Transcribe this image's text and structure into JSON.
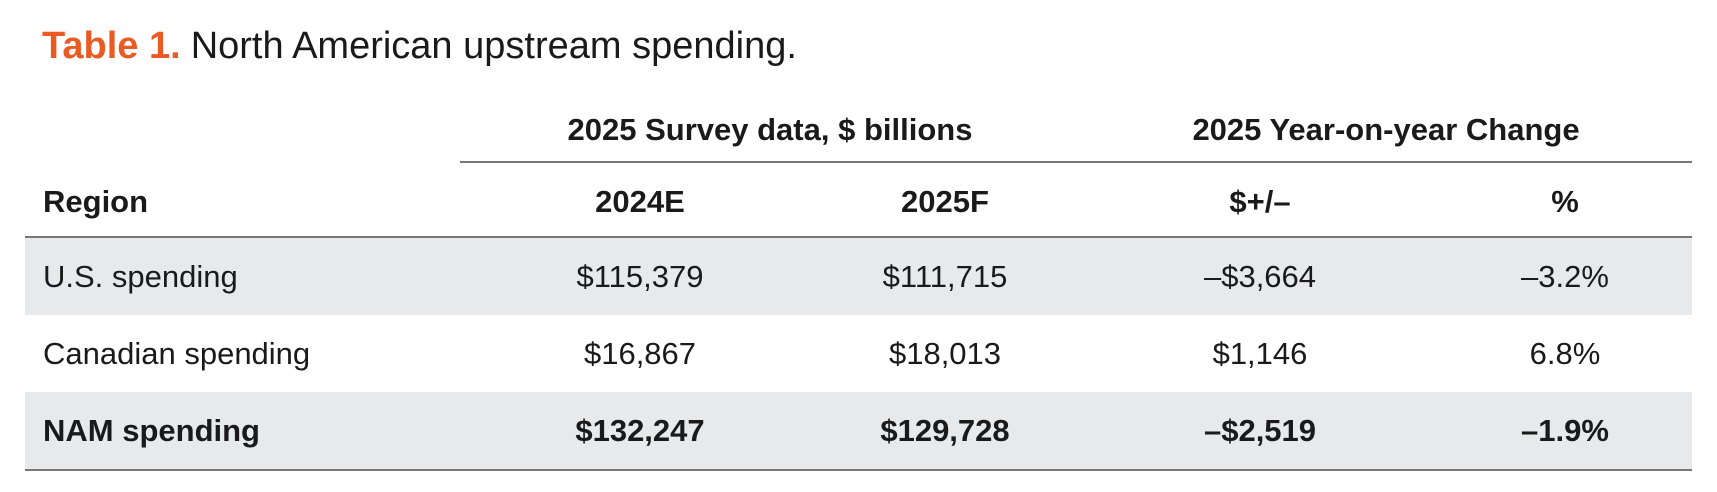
{
  "caption": {
    "label": "Table 1.",
    "title": "North American upstream spending."
  },
  "table": {
    "group_headers": {
      "survey": "2025 Survey data, $ billions",
      "change": "2025 Year-on-year Change"
    },
    "columns": {
      "region": "Region",
      "y2024": "2024E",
      "y2025": "2025F",
      "dollar_change": "$+/–",
      "pct_change": "%"
    },
    "rows": [
      {
        "region": "U.S. spending",
        "y2024": "$115,379",
        "y2025": "$111,715",
        "dollar_change": "–$3,664",
        "pct_change": "–3.2%"
      },
      {
        "region": "Canadian spending",
        "y2024": "$16,867",
        "y2025": "$18,013",
        "dollar_change": "$1,146",
        "pct_change": "6.8%"
      },
      {
        "region": "NAM spending",
        "y2024": "$132,247",
        "y2025": "$129,728",
        "dollar_change": "–$2,519",
        "pct_change": "–1.9%"
      }
    ]
  },
  "colors": {
    "accent": "#ea5b24",
    "row_shade": "#e8e9eb",
    "rule": "#777777"
  }
}
